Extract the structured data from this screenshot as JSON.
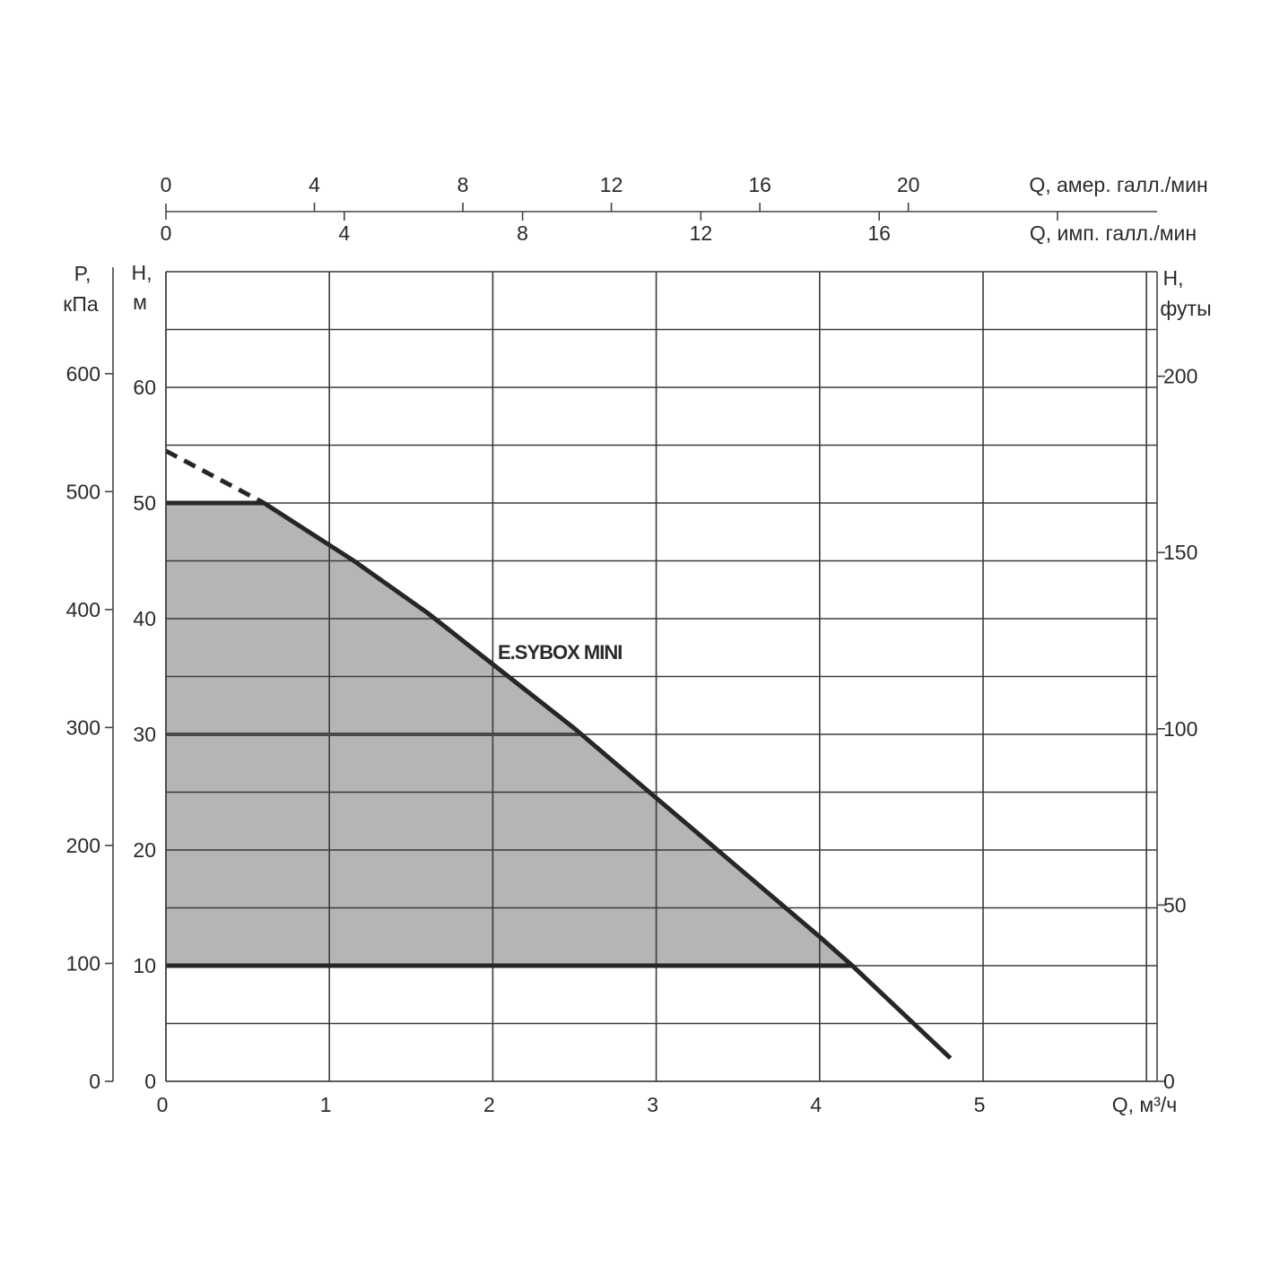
{
  "chart_data": {
    "type": "area",
    "series_label": "E.SYBOX MINI",
    "x": {
      "label": "Q, м³/ч",
      "ticks": [
        "0",
        "1",
        "2",
        "3",
        "4",
        "5"
      ],
      "range": [
        0,
        6
      ]
    },
    "x_top_us": {
      "label": "Q, амер. галл./мин",
      "ticks": [
        "0",
        "4",
        "8",
        "12",
        "16",
        "20"
      ],
      "m3h_per_unit": 0.227125
    },
    "x_top_imp": {
      "label": "Q, имп. галл./мин",
      "ticks": [
        "0",
        "4",
        "8",
        "12",
        "16"
      ],
      "m3h_per_unit": 0.272765
    },
    "y_left_m": {
      "label_line1": "H,",
      "label_line2": "м",
      "ticks": [
        "0",
        "10",
        "20",
        "30",
        "40",
        "50",
        "60"
      ],
      "range": [
        0,
        70
      ]
    },
    "y_left_kpa": {
      "label_line1": "P,",
      "label_line2": "кПа",
      "ticks": [
        "0",
        "100",
        "200",
        "300",
        "400",
        "500",
        "600"
      ],
      "m_per_unit": 0.10197
    },
    "y_right_ft": {
      "label_line1": "H,",
      "label_line2": "футы",
      "ticks": [
        "0",
        "50",
        "100",
        "150",
        "200"
      ],
      "m_per_unit": 0.3048
    },
    "curve": {
      "dashed": [
        [
          0,
          54.5
        ],
        [
          0.6,
          50
        ]
      ],
      "solid": [
        [
          0.6,
          50
        ],
        [
          1.15,
          45
        ],
        [
          1.6,
          40.5
        ],
        [
          2.05,
          35.5
        ],
        [
          2.5,
          30.5
        ],
        [
          3.0,
          24.5
        ],
        [
          3.5,
          18.5
        ],
        [
          4.0,
          12.5
        ],
        [
          4.2,
          10
        ],
        [
          4.8,
          2
        ]
      ]
    },
    "operating_area": [
      [
        0,
        50
      ],
      [
        0.6,
        50
      ],
      [
        1.15,
        45
      ],
      [
        1.6,
        40.5
      ],
      [
        2.05,
        35.5
      ],
      [
        2.5,
        30.5
      ],
      [
        3.0,
        24.5
      ],
      [
        3.5,
        18.5
      ],
      [
        4.0,
        12.5
      ],
      [
        4.2,
        10
      ],
      [
        0,
        10
      ]
    ],
    "limit_lines_m": [
      50,
      30,
      10
    ],
    "grid": true,
    "colors": {
      "area": "#b5b5b5",
      "curve": "#262626",
      "grid": "#3a3a3a",
      "axis": "#444444"
    }
  }
}
